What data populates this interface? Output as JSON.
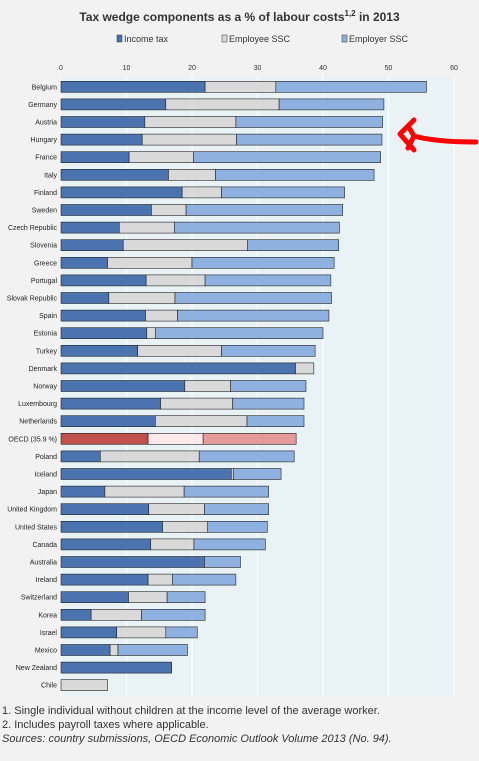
{
  "title": "Tax wedge components as a % of labour costs",
  "title_sup": "1,2",
  "title_suffix": " in 2013",
  "colors": {
    "income_tax": "#4a73b0",
    "employee_ssc": "#d9d9d9",
    "employer_ssc": "#8fb1e0",
    "oecd_income_tax": "#c0504d",
    "oecd_employee_ssc": "#fde9e9",
    "oecd_employer_ssc": "#e39a9a",
    "arrow": "#ff0000",
    "plot_bg": "#e9f3f6"
  },
  "chart_data": {
    "type": "bar",
    "orientation": "horizontal",
    "stacked": true,
    "xlim": [
      0,
      60
    ],
    "xticks": [
      "0",
      "10",
      "20",
      "30",
      "40",
      "50",
      "60"
    ],
    "legend": [
      "Income tax",
      "Employee SSC",
      "Employer SSC"
    ],
    "legend_position": "top",
    "categories": [
      "Belgium",
      "Germany",
      "Austria",
      "Hungary",
      "France",
      "Italy",
      "Finland",
      "Sweden",
      "Czech Republic",
      "Slovenia",
      "Greece",
      "Portugal",
      "Slovak Republic",
      "Spain",
      "Estonia",
      "Turkey",
      "Denmark",
      "Norway",
      "Luxembourg",
      "Netherlands",
      "OECD (35.9 %)",
      "Poland",
      "Iceland",
      "Japan",
      "United Kingdom",
      "United States",
      "Canada",
      "Australia",
      "Ireland",
      "Switzerland",
      "Korea",
      "Israel",
      "Mexico",
      "New Zealand",
      "Chile"
    ],
    "series": [
      {
        "name": "Income tax",
        "values": [
          22.0,
          16.0,
          12.8,
          12.4,
          10.4,
          16.4,
          18.5,
          13.8,
          8.9,
          9.5,
          7.1,
          13.0,
          7.3,
          12.9,
          13.1,
          11.7,
          35.8,
          18.9,
          15.2,
          14.4,
          13.3,
          6.0,
          26.0,
          6.7,
          13.4,
          15.5,
          13.7,
          21.9,
          13.3,
          10.3,
          4.6,
          8.5,
          7.5,
          16.9,
          0.0
        ]
      },
      {
        "name": "Employee SSC",
        "values": [
          10.8,
          17.3,
          13.9,
          14.4,
          9.8,
          7.2,
          6.0,
          5.3,
          8.4,
          19.0,
          12.9,
          9.0,
          10.1,
          4.9,
          1.3,
          12.8,
          2.8,
          7.0,
          11.0,
          14.0,
          8.4,
          15.1,
          0.3,
          12.1,
          8.5,
          6.9,
          6.6,
          0.0,
          3.7,
          5.9,
          7.7,
          7.5,
          1.2,
          0.0,
          7.1
        ]
      },
      {
        "name": "Employer SSC",
        "values": [
          23.0,
          16.0,
          22.4,
          22.2,
          28.6,
          24.2,
          18.8,
          23.9,
          25.2,
          13.9,
          21.7,
          19.2,
          23.9,
          23.1,
          25.6,
          14.3,
          0.0,
          11.5,
          10.9,
          8.7,
          14.2,
          14.5,
          7.3,
          12.9,
          9.8,
          9.1,
          10.9,
          5.5,
          9.7,
          5.8,
          9.7,
          4.8,
          10.6,
          0.0,
          0.0
        ]
      }
    ]
  },
  "footnotes": {
    "note1": "1. Single individual without children at the income level of the average worker.",
    "note2": "2. Includes payroll taxes where applicable.",
    "sources": "Sources: country submissions, OECD Economic Outlook Volume 2013 (No. 94)."
  }
}
